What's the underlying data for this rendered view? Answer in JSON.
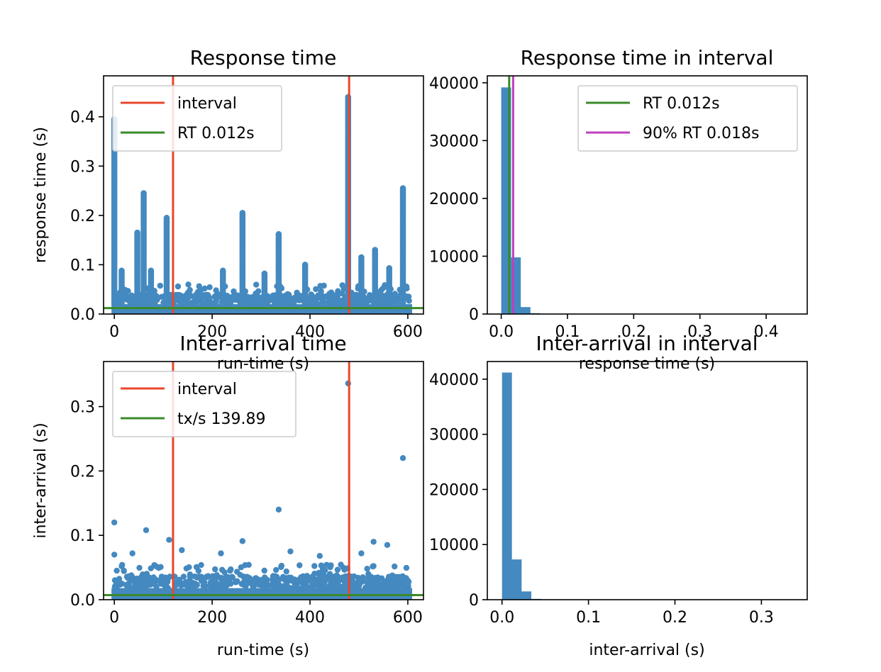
{
  "chart_data": [
    {
      "type": "scatter",
      "title": "Response time",
      "xlabel": "run-time (s)",
      "ylabel": "response time (s)",
      "xlim": [
        -22,
        632
      ],
      "ylim": [
        0,
        0.483
      ],
      "xticks": [
        0,
        200,
        400,
        600
      ],
      "yticks": [
        0.0,
        0.1,
        0.2,
        0.3,
        0.4
      ],
      "color": "#4489c0",
      "interval": [
        120,
        480
      ],
      "interval_color": "#e8472b",
      "rt_line": 0.012,
      "rt_color": "#3a8a2a",
      "legend": [
        "interval",
        "RT 0.012s"
      ],
      "legend_position": "upper left",
      "spikes": [
        {
          "x": 0,
          "values": [
            0.395,
            0.36,
            0.31,
            0.3,
            0.27,
            0.24,
            0.165,
            0.125,
            0.11,
            0.09
          ]
        },
        {
          "x": 15,
          "values": [
            0.088
          ]
        },
        {
          "x": 47,
          "values": [
            0.165,
            0.115,
            0.1
          ]
        },
        {
          "x": 60,
          "values": [
            0.245,
            0.235,
            0.22,
            0.205,
            0.19,
            0.16,
            0.14,
            0.12,
            0.1,
            0.09
          ]
        },
        {
          "x": 75,
          "values": [
            0.088
          ]
        },
        {
          "x": 107,
          "values": [
            0.195,
            0.185,
            0.16,
            0.135,
            0.12,
            0.1
          ]
        },
        {
          "x": 222,
          "values": [
            0.088
          ]
        },
        {
          "x": 262,
          "values": [
            0.205,
            0.195,
            0.185,
            0.17,
            0.16,
            0.14,
            0.12,
            0.09
          ]
        },
        {
          "x": 307,
          "values": [
            0.082
          ]
        },
        {
          "x": 336,
          "values": [
            0.162,
            0.15,
            0.14,
            0.12,
            0.1,
            0.09
          ]
        },
        {
          "x": 390,
          "values": [
            0.1,
            0.085
          ]
        },
        {
          "x": 478,
          "values": [
            0.44,
            0.43,
            0.42,
            0.41,
            0.4,
            0.38,
            0.36,
            0.34,
            0.325,
            0.32
          ]
        },
        {
          "x": 505,
          "values": [
            0.115,
            0.1
          ]
        },
        {
          "x": 533,
          "values": [
            0.13,
            0.12,
            0.1
          ]
        },
        {
          "x": 562,
          "values": [
            0.093
          ]
        },
        {
          "x": 590,
          "values": [
            0.255,
            0.24,
            0.22,
            0.2,
            0.18,
            0.16,
            0.14,
            0.12,
            0.1
          ]
        }
      ]
    },
    {
      "type": "bar",
      "title": "Response time in interval",
      "xlabel": "response time (s)",
      "ylabel": "",
      "xlim": [
        -0.021,
        0.462
      ],
      "ylim": [
        0,
        41200
      ],
      "xticks": [
        0.0,
        0.1,
        0.2,
        0.3,
        0.4
      ],
      "yticks": [
        0,
        10000,
        20000,
        30000,
        40000
      ],
      "bin_width": 0.0146,
      "bin_start": 0,
      "values": [
        39200,
        9800,
        1200,
        150,
        30
      ],
      "color": "#4489c0",
      "rt_line": 0.012,
      "rt_color": "#3a8a2a",
      "p90_line": 0.018,
      "p90_color": "#bf40bf",
      "legend": [
        "RT 0.012s",
        "90% RT 0.018s"
      ],
      "legend_position": "upper right"
    },
    {
      "type": "scatter",
      "title": "Inter-arrival time",
      "xlabel": "run-time (s)",
      "ylabel": "inter-arrival (s)",
      "xlim": [
        -22,
        632
      ],
      "ylim": [
        0,
        0.37
      ],
      "xticks": [
        0,
        200,
        400,
        600
      ],
      "yticks": [
        0.0,
        0.1,
        0.2,
        0.3
      ],
      "color": "#4489c0",
      "interval": [
        120,
        480
      ],
      "interval_color": "#e8472b",
      "tx_line": 0.00715,
      "tx_color": "#3a8a2a",
      "legend": [
        "interval",
        "tx/s 139.89"
      ],
      "legend_position": "upper left",
      "outliers": [
        {
          "x": 0,
          "y": 0.12
        },
        {
          "x": 0,
          "y": 0.07
        },
        {
          "x": 37,
          "y": 0.072
        },
        {
          "x": 65,
          "y": 0.108
        },
        {
          "x": 112,
          "y": 0.093
        },
        {
          "x": 138,
          "y": 0.077
        },
        {
          "x": 218,
          "y": 0.072
        },
        {
          "x": 262,
          "y": 0.091
        },
        {
          "x": 336,
          "y": 0.14
        },
        {
          "x": 360,
          "y": 0.075
        },
        {
          "x": 420,
          "y": 0.068
        },
        {
          "x": 478,
          "y": 0.336
        },
        {
          "x": 505,
          "y": 0.072
        },
        {
          "x": 530,
          "y": 0.09
        },
        {
          "x": 558,
          "y": 0.085
        },
        {
          "x": 590,
          "y": 0.22
        }
      ]
    },
    {
      "type": "bar",
      "title": "Inter-arrival in interval",
      "xlabel": "inter-arrival (s)",
      "ylabel": "",
      "xlim": [
        -0.017,
        0.353
      ],
      "ylim": [
        0,
        43200
      ],
      "xticks": [
        0.0,
        0.1,
        0.2,
        0.3
      ],
      "yticks": [
        0,
        10000,
        20000,
        30000,
        40000
      ],
      "bin_width": 0.0112,
      "bin_start": 0,
      "values": [
        41200,
        7300,
        1500,
        150,
        30
      ],
      "color": "#4489c0"
    }
  ]
}
